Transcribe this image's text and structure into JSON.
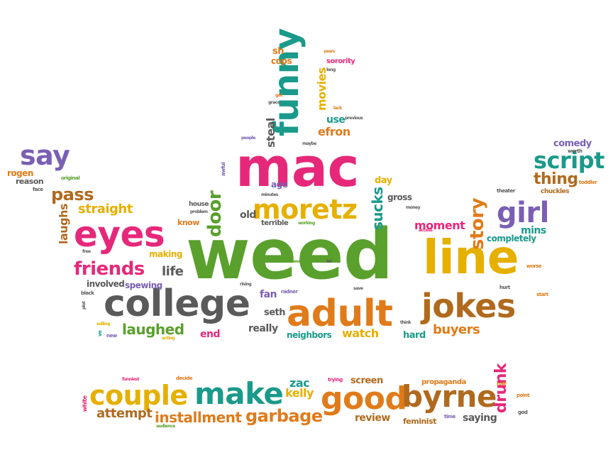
{
  "colors": {
    "green": "#5aa02c",
    "orange": "#e07b1a",
    "gold": "#e5b000",
    "teal": "#1a9a8a",
    "pink": "#e6287a",
    "purple": "#7a5fb4",
    "gray": "#5a5a5a",
    "brown": "#b06a1e"
  },
  "words": [
    "weed",
    "mac",
    "line",
    "adult",
    "college",
    "eyes",
    "funny",
    "jokes",
    "moretz",
    "good",
    "byrne",
    "make",
    "couple",
    "girl",
    "say",
    "script",
    "friends",
    "door",
    "pass",
    "garbage",
    "installment",
    "laughed",
    "story",
    "straight",
    "attempt",
    "buyers",
    "thing",
    "watch",
    "moment",
    "sucks",
    "laughs",
    "zac",
    "kelly",
    "life",
    "screen",
    "review",
    "saying",
    "drunk",
    "comedy",
    "efron",
    "use",
    "steal",
    "movies",
    "sorority",
    "cops",
    "sh",
    "fan",
    "seth",
    "really",
    "neighbors",
    "end",
    "hard",
    "involved",
    "old",
    "age",
    "know",
    "terrible",
    "spewing",
    "making",
    "mins",
    "completely",
    "gross",
    "day",
    "rogen",
    "reason",
    "original",
    "face",
    "feminist",
    "propaganda",
    "trying",
    "decide",
    "funniest",
    "white",
    "audience",
    "half",
    "point",
    "god",
    "time",
    "worth",
    "toddler",
    "chuckles",
    "theater",
    "worse",
    "hurt",
    "start",
    "think",
    "save",
    "let",
    "radner",
    "weed",
    "rising",
    "minutes",
    "problem",
    "house",
    "working",
    "awful",
    "people",
    "maybe",
    "previous",
    "lack",
    "grace",
    "got",
    "long",
    "years",
    "black",
    "plot",
    "new",
    "ve",
    "selling",
    "acting",
    "free",
    "money",
    "access"
  ]
}
